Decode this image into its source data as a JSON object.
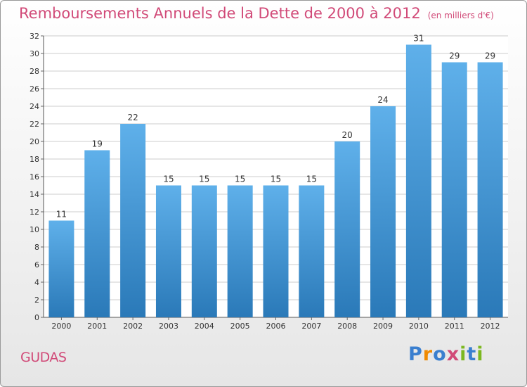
{
  "title": "Remboursements Annuels de la Dette de 2000 à 2012",
  "unit_note": "(en milliers d'€)",
  "city": "GUDAS",
  "logo": {
    "text": "Proxiti",
    "colors": [
      "#3a7fcf",
      "#f08a00",
      "#3a7fcf",
      "#d14a78",
      "#7cb820",
      "#3a7fcf",
      "#7cb820"
    ]
  },
  "colors": {
    "bar_top": "#5fb0ea",
    "bar_bottom": "#2a79b8",
    "title": "#d14a78",
    "grid": "#cccccc"
  },
  "chart_data": {
    "type": "bar",
    "categories": [
      "2000",
      "2001",
      "2002",
      "2003",
      "2004",
      "2005",
      "2006",
      "2007",
      "2008",
      "2009",
      "2010",
      "2011",
      "2012"
    ],
    "values": [
      11,
      19,
      22,
      15,
      15,
      15,
      15,
      15,
      20,
      24,
      31,
      29,
      29
    ],
    "ylim": [
      0,
      32
    ],
    "yticks": [
      0,
      2,
      4,
      6,
      8,
      10,
      12,
      14,
      16,
      18,
      20,
      22,
      24,
      26,
      28,
      30,
      32
    ],
    "grid": true,
    "data_labels": true
  }
}
